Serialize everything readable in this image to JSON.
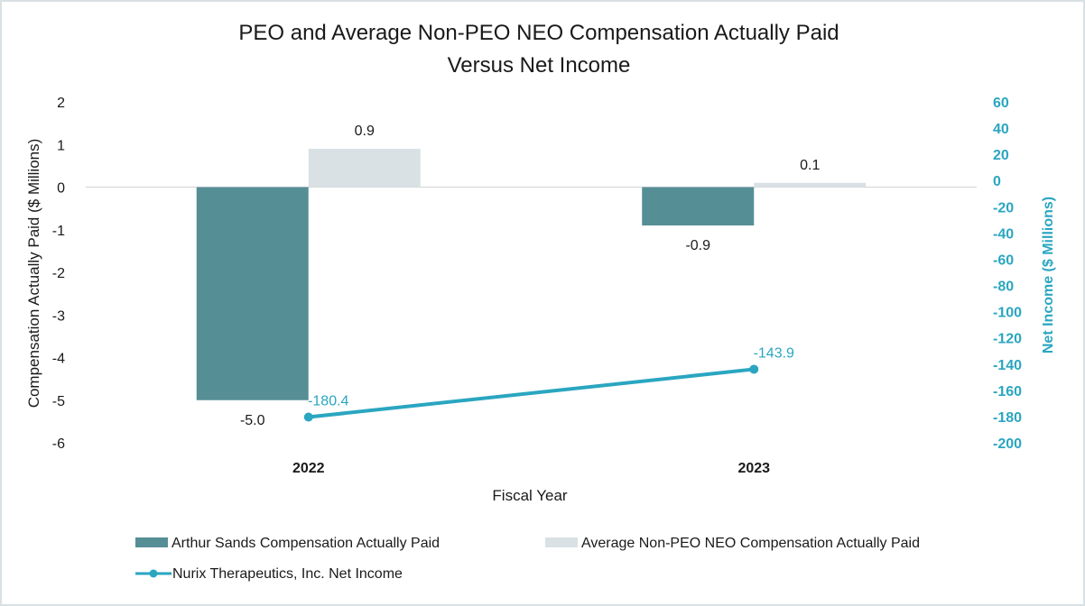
{
  "chart_data": {
    "type": "bar",
    "title": "PEO and Average Non-PEO NEO Compensation Actually Paid",
    "title_line2": "Versus Net Income",
    "categories": [
      "2022",
      "2023"
    ],
    "xlabel": "Fiscal Year",
    "ylabel": "Compensation Actually Paid ($ Millions)",
    "ylabel_right": "Net Income ($ Millions)",
    "ylim": [
      -6,
      2
    ],
    "ylim_right": [
      -200,
      60
    ],
    "yticks": [
      "2",
      "1",
      "0",
      "-1",
      "-2",
      "-3",
      "-4",
      "-5",
      "-6"
    ],
    "yticks_values": [
      2,
      1,
      0,
      -1,
      -2,
      -3,
      -4,
      -5,
      -6
    ],
    "yticks_right": [
      "60",
      "40",
      "20",
      "0",
      "-20",
      "-40",
      "-60",
      "-80",
      "-100",
      "-120",
      "-140",
      "-160",
      "-180",
      "-200"
    ],
    "yticks_right_values": [
      60,
      40,
      20,
      0,
      -20,
      -40,
      -60,
      -80,
      -100,
      -120,
      -140,
      -160,
      -180,
      -200
    ],
    "series": [
      {
        "name": "Arthur Sands Compensation Actually Paid",
        "kind": "bar",
        "axis": "left",
        "values": [
          -5.0,
          -0.9
        ],
        "labels": [
          "-5.0",
          "-0.9"
        ],
        "color": "#568e96"
      },
      {
        "name": "Average Non-PEO NEO Compensation Actually Paid",
        "kind": "bar",
        "axis": "left",
        "values": [
          0.9,
          0.1
        ],
        "labels": [
          "0.9",
          "0.1"
        ],
        "color": "#d9e1e5"
      },
      {
        "name": "Nurix Therapeutics, Inc. Net Income",
        "kind": "line",
        "axis": "right",
        "values": [
          -180.4,
          -143.9
        ],
        "labels": [
          "-180.4",
          "-143.9"
        ],
        "color": "#2aa6c0"
      }
    ]
  }
}
